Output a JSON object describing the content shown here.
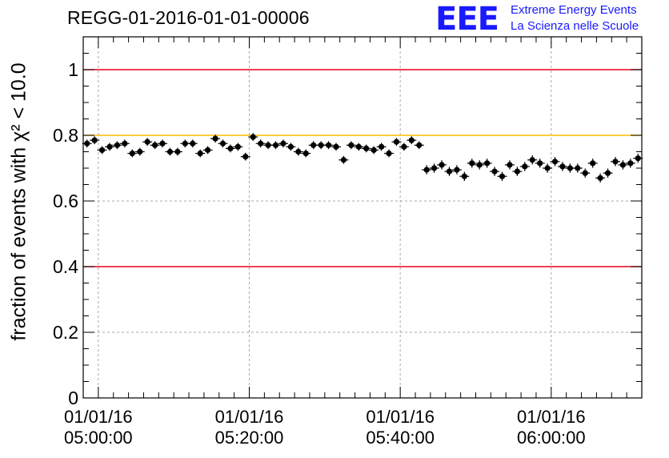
{
  "header": {
    "title": "REGG-01-2016-01-01-00006"
  },
  "logo": {
    "mark": "EEE",
    "line1": "Extreme Energy Events",
    "line2": "La Scienza nelle Scuole",
    "color": "#1a1aff"
  },
  "chart_data": {
    "type": "scatter",
    "title": "REGG-01-2016-01-01-00006",
    "ylabel": "fraction of events with χ² < 10.0",
    "xlabel": "",
    "ylim": [
      0,
      1.1
    ],
    "xlim": [
      "04:58:00",
      "06:12:00"
    ],
    "x_unit": "time (01/01/16)",
    "grid": true,
    "y_ticks": [
      "0",
      "0.2",
      "0.4",
      "0.6",
      "0.8",
      "1"
    ],
    "x_ticks": [
      {
        "date": "01/01/16",
        "time": "05:00:00"
      },
      {
        "date": "01/01/16",
        "time": "05:20:00"
      },
      {
        "date": "01/01/16",
        "time": "05:40:00"
      },
      {
        "date": "01/01/16",
        "time": "06:00:00"
      }
    ],
    "reference_lines": [
      {
        "y": 1.0,
        "color": "#e8001c"
      },
      {
        "y": 0.8,
        "color": "#ffbb00"
      },
      {
        "y": 0.4,
        "color": "#e8001c"
      }
    ],
    "series": [
      {
        "x": [
          "04:58:30",
          "04:59:30",
          "05:00:30",
          "05:01:30",
          "05:02:30",
          "05:03:30",
          "05:04:30",
          "05:05:30",
          "05:06:30",
          "05:07:30",
          "05:08:30",
          "05:09:30",
          "05:10:30",
          "05:11:30",
          "05:12:30",
          "05:13:30",
          "05:14:30",
          "05:15:30",
          "05:16:30",
          "05:17:30",
          "05:18:30",
          "05:19:30",
          "05:20:30",
          "05:21:30",
          "05:22:30",
          "05:23:30",
          "05:24:30",
          "05:25:30",
          "05:26:30",
          "05:27:30",
          "05:28:30",
          "05:29:30",
          "05:30:30",
          "05:31:30",
          "05:32:30",
          "05:33:30",
          "05:34:30",
          "05:35:30",
          "05:36:30",
          "05:37:30",
          "05:38:30",
          "05:39:30",
          "05:40:30",
          "05:41:30",
          "05:42:30",
          "05:43:30",
          "05:44:30",
          "05:45:30",
          "05:46:30",
          "05:47:30",
          "05:48:30",
          "05:49:30",
          "05:50:30",
          "05:51:30",
          "05:52:30",
          "05:53:30",
          "05:54:30",
          "05:55:30",
          "05:56:30",
          "05:57:30",
          "05:58:30",
          "05:59:30",
          "06:00:30",
          "06:01:30",
          "06:02:30",
          "06:03:30",
          "06:04:30",
          "06:05:30",
          "06:06:30",
          "06:07:30",
          "06:08:30",
          "06:09:30",
          "06:10:30",
          "06:11:30"
        ],
        "values": [
          0.775,
          0.785,
          0.755,
          0.765,
          0.77,
          0.775,
          0.745,
          0.75,
          0.78,
          0.77,
          0.775,
          0.75,
          0.75,
          0.775,
          0.775,
          0.745,
          0.755,
          0.79,
          0.775,
          0.76,
          0.765,
          0.735,
          0.795,
          0.775,
          0.77,
          0.77,
          0.775,
          0.765,
          0.75,
          0.745,
          0.77,
          0.77,
          0.77,
          0.765,
          0.725,
          0.77,
          0.765,
          0.76,
          0.755,
          0.765,
          0.745,
          0.78,
          0.765,
          0.785,
          0.77,
          0.695,
          0.7,
          0.71,
          0.69,
          0.695,
          0.675,
          0.715,
          0.71,
          0.715,
          0.69,
          0.675,
          0.71,
          0.69,
          0.705,
          0.725,
          0.715,
          0.7,
          0.72,
          0.705,
          0.7,
          0.7,
          0.685,
          0.715,
          0.67,
          0.685,
          0.72,
          0.71,
          0.715,
          0.73
        ],
        "errors": [
          0.012,
          0.012,
          0.012,
          0.012,
          0.012,
          0.012,
          0.012,
          0.012,
          0.012,
          0.012,
          0.012,
          0.012,
          0.012,
          0.012,
          0.012,
          0.012,
          0.012,
          0.012,
          0.012,
          0.012,
          0.012,
          0.012,
          0.012,
          0.012,
          0.012,
          0.012,
          0.012,
          0.012,
          0.012,
          0.012,
          0.012,
          0.012,
          0.012,
          0.012,
          0.012,
          0.012,
          0.012,
          0.012,
          0.012,
          0.012,
          0.012,
          0.012,
          0.012,
          0.012,
          0.012,
          0.014,
          0.014,
          0.014,
          0.014,
          0.014,
          0.014,
          0.014,
          0.014,
          0.014,
          0.014,
          0.014,
          0.014,
          0.014,
          0.014,
          0.014,
          0.014,
          0.014,
          0.014,
          0.014,
          0.014,
          0.014,
          0.014,
          0.014,
          0.014,
          0.014,
          0.014,
          0.014,
          0.014,
          0.014
        ]
      }
    ]
  }
}
